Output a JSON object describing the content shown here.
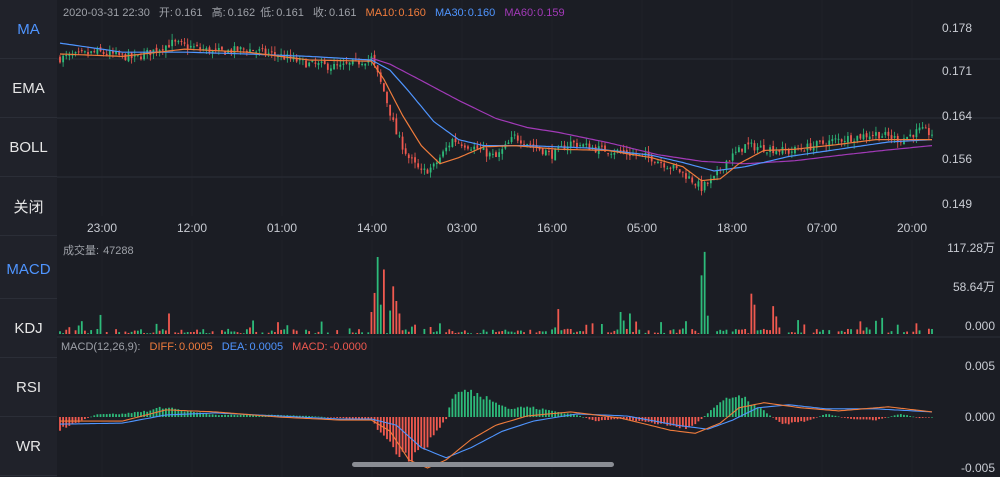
{
  "sidebar": {
    "main_indicators": [
      "MA",
      "EMA",
      "BOLL",
      "关闭"
    ],
    "sub_indicators": [
      "MACD",
      "KDJ",
      "RSI",
      "WR"
    ],
    "active_main": "MA",
    "active_sub": "MACD"
  },
  "info_bar": {
    "datetime": "2020-03-31 22:30",
    "open_label": "开:",
    "open": "0.161",
    "high_label": "高:",
    "high": "0.162",
    "low_label": "低:",
    "low": "0.161",
    "close_label": "收:",
    "close": "0.161",
    "ma10_label": "MA10:",
    "ma10": "0.160",
    "ma30_label": "MA30:",
    "ma30": "0.160",
    "ma60_label": "MA60:",
    "ma60": "0.159"
  },
  "volume_info": {
    "label": "成交量:",
    "value": "47288"
  },
  "macd_info": {
    "params": "MACD(12,26,9):",
    "diff_label": "DIFF:",
    "diff": "0.0005",
    "dea_label": "DEA:",
    "dea": "0.0005",
    "macd_label": "MACD:",
    "macd": "-0.0000"
  },
  "colors": {
    "up": "#2dbb7a",
    "down": "#f0594f",
    "ma10": "#f07c3c",
    "ma30": "#4f95ff",
    "ma60": "#a23ab8",
    "background": "#1b1d24",
    "grid": "#2b2e37",
    "accent": "#4f95ff"
  },
  "chart_data": [
    {
      "type": "candlestick",
      "x_ticks": [
        "23:00",
        "12:00",
        "01:00",
        "14:00",
        "03:00",
        "16:00",
        "05:00",
        "18:00",
        "07:00",
        "20:00"
      ],
      "y_ticks": [
        "0.178",
        "0.171",
        "0.164",
        "0.156",
        "0.149"
      ],
      "ylim": [
        0.1475,
        0.1795
      ],
      "close_path": [
        [
          0,
          0.1735
        ],
        [
          12,
          0.1745
        ],
        [
          24,
          0.1735
        ],
        [
          36,
          0.176
        ],
        [
          50,
          0.1745
        ],
        [
          60,
          0.175
        ],
        [
          70,
          0.174
        ],
        [
          80,
          0.1725
        ],
        [
          90,
          0.172
        ],
        [
          100,
          0.1735
        ],
        [
          104,
          0.168
        ],
        [
          108,
          0.161
        ],
        [
          112,
          0.157
        ],
        [
          116,
          0.1545
        ],
        [
          120,
          0.1555
        ],
        [
          126,
          0.16
        ],
        [
          134,
          0.1585
        ],
        [
          140,
          0.157
        ],
        [
          146,
          0.1605
        ],
        [
          152,
          0.159
        ],
        [
          158,
          0.1575
        ],
        [
          164,
          0.1595
        ],
        [
          172,
          0.1585
        ],
        [
          180,
          0.158
        ],
        [
          190,
          0.157
        ],
        [
          200,
          0.1545
        ],
        [
          206,
          0.152
        ],
        [
          210,
          0.1535
        ],
        [
          214,
          0.1565
        ],
        [
          220,
          0.159
        ],
        [
          228,
          0.1585
        ],
        [
          234,
          0.158
        ],
        [
          242,
          0.159
        ],
        [
          250,
          0.16
        ],
        [
          256,
          0.1605
        ],
        [
          262,
          0.161
        ],
        [
          270,
          0.16
        ],
        [
          276,
          0.1615
        ],
        [
          280,
          0.161
        ]
      ],
      "ma10_path": [
        [
          0,
          0.1742
        ],
        [
          20,
          0.1738
        ],
        [
          40,
          0.175
        ],
        [
          60,
          0.1745
        ],
        [
          80,
          0.1732
        ],
        [
          100,
          0.173
        ],
        [
          104,
          0.17
        ],
        [
          110,
          0.164
        ],
        [
          116,
          0.159
        ],
        [
          122,
          0.156
        ],
        [
          128,
          0.157
        ],
        [
          136,
          0.1588
        ],
        [
          146,
          0.159
        ],
        [
          160,
          0.1584
        ],
        [
          176,
          0.1582
        ],
        [
          190,
          0.157
        ],
        [
          200,
          0.1555
        ],
        [
          206,
          0.1532
        ],
        [
          212,
          0.1535
        ],
        [
          218,
          0.156
        ],
        [
          226,
          0.1582
        ],
        [
          236,
          0.1584
        ],
        [
          250,
          0.1592
        ],
        [
          262,
          0.16
        ],
        [
          280,
          0.16
        ]
      ],
      "ma30_path": [
        [
          0,
          0.176
        ],
        [
          20,
          0.1745
        ],
        [
          40,
          0.1745
        ],
        [
          60,
          0.1742
        ],
        [
          80,
          0.1738
        ],
        [
          100,
          0.1732
        ],
        [
          106,
          0.1715
        ],
        [
          112,
          0.168
        ],
        [
          120,
          0.163
        ],
        [
          128,
          0.16
        ],
        [
          136,
          0.159
        ],
        [
          150,
          0.159
        ],
        [
          170,
          0.1586
        ],
        [
          190,
          0.1574
        ],
        [
          200,
          0.1562
        ],
        [
          210,
          0.1548
        ],
        [
          220,
          0.1555
        ],
        [
          234,
          0.1572
        ],
        [
          250,
          0.1584
        ],
        [
          266,
          0.1596
        ],
        [
          280,
          0.16
        ]
      ],
      "ma60_path": [
        [
          100,
          0.1735
        ],
        [
          106,
          0.1725
        ],
        [
          116,
          0.1698
        ],
        [
          128,
          0.1665
        ],
        [
          140,
          0.1635
        ],
        [
          150,
          0.162
        ],
        [
          160,
          0.1612
        ],
        [
          176,
          0.1595
        ],
        [
          192,
          0.1575
        ],
        [
          206,
          0.1564
        ],
        [
          220,
          0.156
        ],
        [
          236,
          0.1565
        ],
        [
          252,
          0.1575
        ],
        [
          266,
          0.1583
        ],
        [
          280,
          0.159
        ]
      ]
    },
    {
      "type": "bar",
      "title": "成交量",
      "y_ticks": [
        "117.28万",
        "58.64万",
        "0.000"
      ],
      "ylim": [
        0,
        117.28
      ],
      "y_unit": "万",
      "spikes": [
        [
          13,
          26
        ],
        [
          35,
          28
        ],
        [
          100,
          30
        ],
        [
          101,
          56
        ],
        [
          102,
          105
        ],
        [
          103,
          40
        ],
        [
          104,
          88
        ],
        [
          106,
          32
        ],
        [
          107,
          65
        ],
        [
          108,
          45
        ],
        [
          109,
          28
        ],
        [
          160,
          34
        ],
        [
          180,
          30
        ],
        [
          183,
          28
        ],
        [
          206,
          80
        ],
        [
          207,
          112
        ],
        [
          208,
          25
        ],
        [
          222,
          55
        ],
        [
          223,
          40
        ],
        [
          229,
          38
        ],
        [
          230,
          24
        ],
        [
          262,
          18
        ],
        [
          264,
          22
        ]
      ]
    },
    {
      "type": "bar",
      "title": "MACD(12,26,9)",
      "y_ticks": [
        "0.005",
        "0.000",
        "-0.005"
      ],
      "ylim": [
        -0.005,
        0.005
      ],
      "histogram_path": [
        [
          0,
          -0.0012
        ],
        [
          6,
          -0.0005
        ],
        [
          12,
          0.0003
        ],
        [
          20,
          0.0003
        ],
        [
          28,
          0.0006
        ],
        [
          34,
          0.001
        ],
        [
          40,
          0.0006
        ],
        [
          50,
          0.0002
        ],
        [
          60,
          0.0002
        ],
        [
          70,
          0.0002
        ],
        [
          80,
          0.0001
        ],
        [
          90,
          -0.0001
        ],
        [
          100,
          -0.0003
        ],
        [
          104,
          -0.002
        ],
        [
          108,
          -0.0036
        ],
        [
          112,
          -0.004
        ],
        [
          116,
          -0.0034
        ],
        [
          120,
          -0.0018
        ],
        [
          124,
          -0.0002
        ],
        [
          126,
          0.002
        ],
        [
          130,
          0.0026
        ],
        [
          136,
          0.002
        ],
        [
          140,
          0.0016
        ],
        [
          144,
          0.0008
        ],
        [
          150,
          0.001
        ],
        [
          158,
          0.0006
        ],
        [
          166,
          0.0002
        ],
        [
          172,
          -0.0004
        ],
        [
          180,
          -0.0002
        ],
        [
          186,
          -0.0004
        ],
        [
          194,
          -0.0007
        ],
        [
          200,
          -0.0011
        ],
        [
          204,
          -0.0008
        ],
        [
          208,
          0.0004
        ],
        [
          212,
          0.0014
        ],
        [
          216,
          0.0022
        ],
        [
          220,
          0.0018
        ],
        [
          226,
          0.0006
        ],
        [
          232,
          -0.0007
        ],
        [
          240,
          -0.0004
        ],
        [
          246,
          0.0003
        ],
        [
          254,
          -0.0002
        ],
        [
          262,
          -0.0003
        ],
        [
          270,
          0.0003
        ],
        [
          276,
          -0.0001
        ],
        [
          280,
          0.0
        ]
      ],
      "diff_path": [
        [
          0,
          -0.0004
        ],
        [
          20,
          -0.0004
        ],
        [
          34,
          0.0007
        ],
        [
          50,
          0.0005
        ],
        [
          70,
          0.0
        ],
        [
          90,
          -0.0003
        ],
        [
          100,
          -0.0003
        ],
        [
          106,
          -0.0014
        ],
        [
          112,
          -0.0042
        ],
        [
          118,
          -0.005
        ],
        [
          124,
          -0.0042
        ],
        [
          132,
          -0.0022
        ],
        [
          140,
          -0.0008
        ],
        [
          150,
          0.0001
        ],
        [
          164,
          0.0005
        ],
        [
          180,
          -0.0001
        ],
        [
          196,
          -0.0013
        ],
        [
          204,
          -0.0016
        ],
        [
          212,
          -0.0006
        ],
        [
          218,
          0.0009
        ],
        [
          226,
          0.0014
        ],
        [
          238,
          0.0009
        ],
        [
          250,
          0.0006
        ],
        [
          266,
          0.001
        ],
        [
          280,
          0.0005
        ]
      ],
      "dea_path": [
        [
          0,
          -0.0007
        ],
        [
          20,
          -0.0006
        ],
        [
          34,
          0.0002
        ],
        [
          50,
          0.0004
        ],
        [
          70,
          0.0001
        ],
        [
          90,
          -0.0002
        ],
        [
          100,
          -0.0002
        ],
        [
          108,
          -0.0008
        ],
        [
          116,
          -0.003
        ],
        [
          124,
          -0.004
        ],
        [
          132,
          -0.003
        ],
        [
          142,
          -0.0014
        ],
        [
          152,
          -0.0004
        ],
        [
          166,
          0.0003
        ],
        [
          182,
          0.0001
        ],
        [
          198,
          -0.0008
        ],
        [
          208,
          -0.0012
        ],
        [
          216,
          -0.0003
        ],
        [
          224,
          0.0009
        ],
        [
          234,
          0.0012
        ],
        [
          246,
          0.0008
        ],
        [
          262,
          0.0008
        ],
        [
          280,
          0.0005
        ]
      ]
    }
  ]
}
